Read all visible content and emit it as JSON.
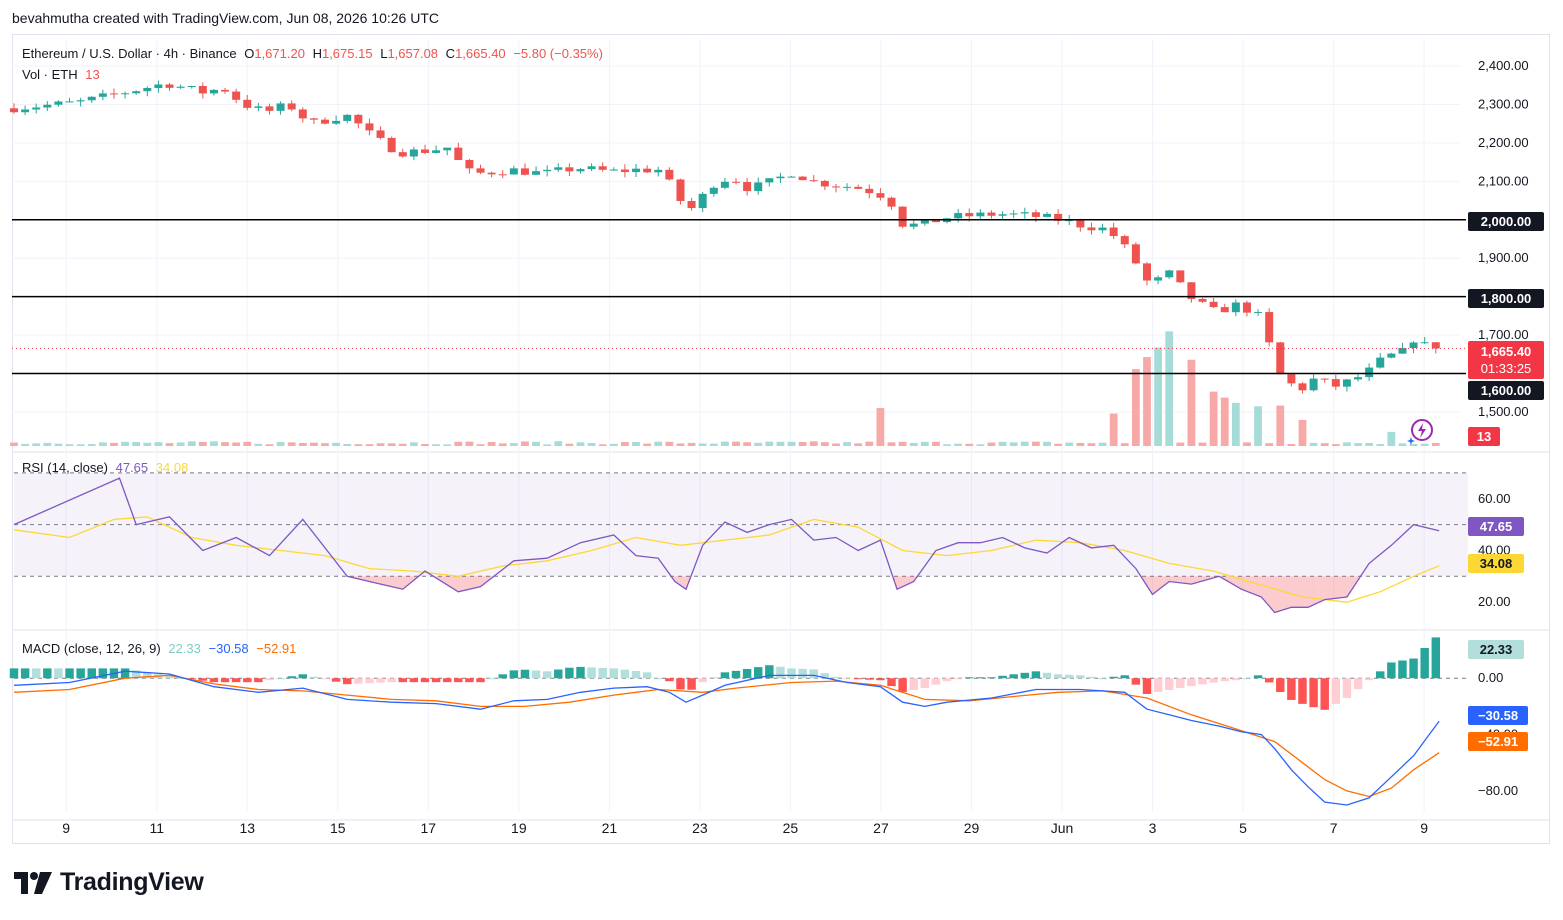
{
  "attribution": "bevahmutha created with TradingView.com, Jun 08, 2026 10:26 UTC",
  "brand": "TradingView",
  "symbol": {
    "title": "Ethereum / U.S. Dollar · 4h · Binance",
    "open_label": "O",
    "open": "1,671.20",
    "high_label": "H",
    "high": "1,675.15",
    "low_label": "L",
    "low": "1,657.08",
    "close_label": "C",
    "close": "1,665.40",
    "change": "−5.80 (−0.35%)"
  },
  "volume_legend": {
    "label": "Vol · ETH",
    "value": "13"
  },
  "rsi_legend": {
    "label": "RSI (14, close)",
    "rsi": "47.65",
    "ma": "34.08"
  },
  "macd_legend": {
    "label": "MACD (close, 12, 26, 9)",
    "hist": "22.33",
    "macd": "−30.58",
    "signal": "−52.91"
  },
  "badges": {
    "last_price": "1,665.40",
    "countdown": "01:33:25",
    "volume": "13",
    "rsi": "47.65",
    "rsi_ma": "34.08",
    "macd_hist": "22.33",
    "macd": "−30.58",
    "signal": "−52.91"
  },
  "colors": {
    "up": "#26a69a",
    "down": "#ef5350",
    "rsi": "#7e57c2",
    "rsi_ma": "#fdd835",
    "macd": "#2962ff",
    "signal": "#ff6d00",
    "level": "#000000"
  },
  "chart_data": [
    {
      "type": "candlestick",
      "title": "Ethereum / U.S. Dollar · 4h · Binance",
      "x_ticks": [
        "9",
        "11",
        "13",
        "15",
        "17",
        "19",
        "21",
        "23",
        "25",
        "27",
        "29",
        "Jun",
        "3",
        "5",
        "7",
        "9"
      ],
      "y_ticks": [
        "2,400.00",
        "2,300.00",
        "2,200.00",
        "2,100.00",
        "2,000.00",
        "1,900.00",
        "1,800.00",
        "1,700.00",
        "1,600.00",
        "1,500.00"
      ],
      "ylim": [
        1435,
        2430
      ],
      "horizontal_levels": [
        2000,
        1800,
        1600
      ],
      "level_labels": [
        "2,000.00",
        "1,800.00",
        "1,600.00"
      ],
      "last_price": 1665.4,
      "close_path": [
        [
          0,
          2290
        ],
        [
          6,
          2305
        ],
        [
          10,
          2330
        ],
        [
          14,
          2355
        ],
        [
          17.6,
          2330
        ],
        [
          19,
          2345
        ],
        [
          21,
          2300
        ],
        [
          23,
          2280
        ],
        [
          25,
          2300
        ],
        [
          27,
          2250
        ],
        [
          29.8,
          2270
        ],
        [
          30.5,
          2270
        ],
        [
          32,
          2230
        ],
        [
          33.5,
          2200
        ],
        [
          35,
          2175
        ],
        [
          37.5,
          2180
        ],
        [
          39.8,
          2190
        ],
        [
          40.6,
          2130
        ],
        [
          42,
          2120
        ],
        [
          45,
          2130
        ],
        [
          48,
          2120
        ],
        [
          51,
          2135
        ],
        [
          54,
          2125
        ],
        [
          56,
          2130
        ],
        [
          58.8,
          2130
        ],
        [
          59.8,
          2060
        ],
        [
          61.3,
          2030
        ],
        [
          63.5,
          2100
        ],
        [
          65,
          2110
        ],
        [
          66.5,
          2080
        ],
        [
          68.5,
          2100
        ],
        [
          70.5,
          2125
        ],
        [
          72,
          2100
        ],
        [
          74.5,
          2090
        ],
        [
          76,
          2085
        ],
        [
          78,
          2070
        ],
        [
          79.2,
          2050
        ],
        [
          80,
          1990
        ],
        [
          82,
          1985
        ],
        [
          84,
          2005
        ],
        [
          86,
          2010
        ],
        [
          89,
          2015
        ],
        [
          92,
          2010
        ],
        [
          94.5,
          2000
        ],
        [
          96.5,
          1985
        ],
        [
          98.7,
          1975
        ],
        [
          100,
          1940
        ],
        [
          101.5,
          1880
        ],
        [
          102.5,
          1830
        ],
        [
          104.3,
          1860
        ],
        [
          106.5,
          1790
        ],
        [
          108.5,
          1760
        ],
        [
          110.5,
          1780
        ],
        [
          112.3,
          1750
        ],
        [
          113.5,
          1660
        ],
        [
          114.5,
          1580
        ],
        [
          116.5,
          1560
        ],
        [
          117.5,
          1590
        ],
        [
          119,
          1565
        ],
        [
          120.5,
          1580
        ],
        [
          122,
          1600
        ],
        [
          124,
          1650
        ],
        [
          125,
          1640
        ],
        [
          126,
          1695
        ],
        [
          127.5,
          1670
        ],
        [
          128.3,
          1665.4
        ]
      ]
    },
    {
      "type": "bar",
      "title": "Vol · ETH",
      "last_value": 13,
      "spikes": [
        [
          78,
          90
        ],
        [
          99,
          85
        ],
        [
          101.5,
          220
        ],
        [
          102.5,
          250
        ],
        [
          104,
          265
        ],
        [
          106,
          220
        ],
        [
          108.5,
          140
        ],
        [
          110,
          120
        ],
        [
          112,
          100
        ],
        [
          114,
          110
        ],
        [
          116,
          80
        ],
        [
          124,
          40
        ]
      ]
    },
    {
      "type": "line",
      "title": "RSI (14, close)",
      "y_ticks": [
        "60.00",
        "40.00",
        "20.00"
      ],
      "ylim": [
        10,
        75
      ],
      "bands": [
        30,
        50,
        70
      ],
      "series": [
        {
          "name": "RSI",
          "values": [
            [
              0,
              50
            ],
            [
              9.5,
              68
            ],
            [
              11,
              50
            ],
            [
              14,
              53
            ],
            [
              17,
              40
            ],
            [
              20,
              45
            ],
            [
              23,
              38
            ],
            [
              26,
              52
            ],
            [
              30,
              30
            ],
            [
              33,
              27
            ],
            [
              35,
              25
            ],
            [
              37,
              32
            ],
            [
              40,
              24
            ],
            [
              42,
              26
            ],
            [
              45,
              36
            ],
            [
              48,
              37
            ],
            [
              51,
              43
            ],
            [
              54,
              46
            ],
            [
              56,
              38
            ],
            [
              58,
              37
            ],
            [
              59.5,
              28
            ],
            [
              60.5,
              25
            ],
            [
              62,
              42
            ],
            [
              64,
              51
            ],
            [
              66,
              47
            ],
            [
              68,
              50
            ],
            [
              70,
              52
            ],
            [
              72,
              44
            ],
            [
              74,
              45
            ],
            [
              76,
              40
            ],
            [
              78,
              44
            ],
            [
              79.5,
              25
            ],
            [
              81,
              28
            ],
            [
              83,
              40
            ],
            [
              85,
              43
            ],
            [
              87,
              43
            ],
            [
              89,
              45
            ],
            [
              91,
              41
            ],
            [
              93,
              39
            ],
            [
              95,
              45
            ],
            [
              97,
              41
            ],
            [
              99,
              42
            ],
            [
              101,
              33
            ],
            [
              102.5,
              23
            ],
            [
              104,
              28
            ],
            [
              106,
              27
            ],
            [
              108.5,
              30
            ],
            [
              110.5,
              25
            ],
            [
              112.3,
              22
            ],
            [
              113.5,
              16
            ],
            [
              115,
              18
            ],
            [
              116.5,
              18
            ],
            [
              118,
              21
            ],
            [
              120,
              22
            ],
            [
              122,
              35
            ],
            [
              124,
              42
            ],
            [
              126,
              50
            ],
            [
              128.3,
              47.65
            ]
          ]
        },
        {
          "name": "RSI MA",
          "values": [
            [
              0,
              48
            ],
            [
              5,
              45
            ],
            [
              9,
              52
            ],
            [
              12,
              53
            ],
            [
              16,
              45
            ],
            [
              20,
              42
            ],
            [
              24,
              40
            ],
            [
              28,
              38
            ],
            [
              32,
              33
            ],
            [
              36,
              32
            ],
            [
              40,
              30
            ],
            [
              44,
              34
            ],
            [
              48,
              36
            ],
            [
              52,
              40
            ],
            [
              56,
              45
            ],
            [
              60,
              42
            ],
            [
              64,
              44
            ],
            [
              68,
              46
            ],
            [
              72,
              52
            ],
            [
              76,
              49
            ],
            [
              80,
              40
            ],
            [
              84,
              38
            ],
            [
              88,
              40
            ],
            [
              92,
              44
            ],
            [
              96,
              43
            ],
            [
              100,
              40
            ],
            [
              104,
              35
            ],
            [
              108,
              32
            ],
            [
              112,
              27
            ],
            [
              116,
              22
            ],
            [
              120,
              20
            ],
            [
              123,
              24
            ],
            [
              126,
              30
            ],
            [
              128.3,
              34.08
            ]
          ]
        }
      ]
    },
    {
      "type": "line",
      "title": "MACD (close, 12, 26, 9)",
      "y_ticks": [
        "0.00",
        "−40.00",
        "−80.00"
      ],
      "ylim": [
        -95,
        30
      ],
      "series": [
        {
          "name": "MACD",
          "values": [
            [
              0,
              -5
            ],
            [
              5,
              -3
            ],
            [
              10,
              5
            ],
            [
              14,
              3
            ],
            [
              18,
              -6
            ],
            [
              22,
              -10
            ],
            [
              26,
              -7
            ],
            [
              30,
              -15
            ],
            [
              34,
              -17
            ],
            [
              38,
              -18
            ],
            [
              42,
              -22
            ],
            [
              45,
              -16
            ],
            [
              48,
              -15
            ],
            [
              51,
              -10
            ],
            [
              54,
              -7
            ],
            [
              57,
              -6
            ],
            [
              59,
              -10
            ],
            [
              60.5,
              -17
            ],
            [
              62,
              -12
            ],
            [
              64,
              -5
            ],
            [
              68,
              2
            ],
            [
              72,
              2
            ],
            [
              75,
              -3
            ],
            [
              78,
              -6
            ],
            [
              80,
              -17
            ],
            [
              82,
              -20
            ],
            [
              84,
              -17
            ],
            [
              88,
              -14
            ],
            [
              92,
              -8
            ],
            [
              96,
              -8
            ],
            [
              100,
              -10
            ],
            [
              102,
              -22
            ],
            [
              104,
              -26
            ],
            [
              106,
              -30
            ],
            [
              108.5,
              -34
            ],
            [
              110.5,
              -38
            ],
            [
              112.3,
              -40
            ],
            [
              113.5,
              -50
            ],
            [
              115,
              -65
            ],
            [
              116.5,
              -77
            ],
            [
              118,
              -88
            ],
            [
              120,
              -90
            ],
            [
              122,
              -85
            ],
            [
              124,
              -70
            ],
            [
              126,
              -55
            ],
            [
              128.3,
              -30.58
            ]
          ]
        },
        {
          "name": "Signal",
          "values": [
            [
              0,
              -10
            ],
            [
              5,
              -8
            ],
            [
              10,
              0
            ],
            [
              14,
              2
            ],
            [
              18,
              -4
            ],
            [
              22,
              -8
            ],
            [
              26,
              -9
            ],
            [
              30,
              -12
            ],
            [
              34,
              -15
            ],
            [
              38,
              -16
            ],
            [
              42,
              -20
            ],
            [
              46,
              -20
            ],
            [
              50,
              -17
            ],
            [
              54,
              -12
            ],
            [
              58,
              -8
            ],
            [
              62,
              -10
            ],
            [
              65,
              -7
            ],
            [
              70,
              -3
            ],
            [
              74,
              -2
            ],
            [
              78,
              -5
            ],
            [
              82,
              -15
            ],
            [
              86,
              -16
            ],
            [
              90,
              -13
            ],
            [
              94,
              -10
            ],
            [
              98,
              -9
            ],
            [
              102,
              -14
            ],
            [
              106,
              -26
            ],
            [
              110,
              -36
            ],
            [
              113.5,
              -45
            ],
            [
              116,
              -60
            ],
            [
              118,
              -72
            ],
            [
              120,
              -80
            ],
            [
              122,
              -84
            ],
            [
              124,
              -78
            ],
            [
              126,
              -65
            ],
            [
              128.3,
              -52.91
            ]
          ]
        }
      ]
    }
  ]
}
